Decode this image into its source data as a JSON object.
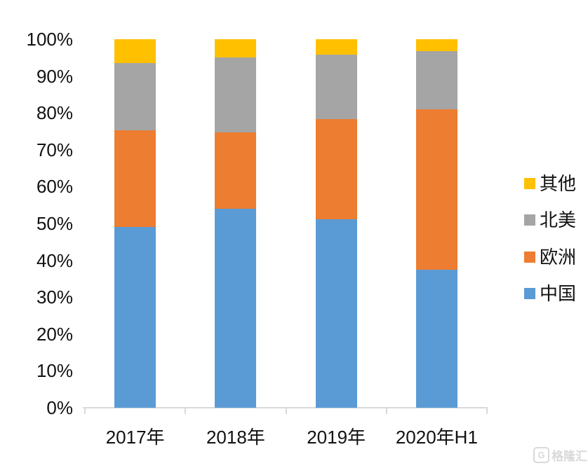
{
  "chart_data": {
    "type": "bar",
    "subtype": "stacked-100-percent",
    "title": "",
    "xlabel": "",
    "ylabel": "",
    "categories": [
      "2017年",
      "2018年",
      "2019年",
      "2020年H1"
    ],
    "series": [
      {
        "name": "中国",
        "color": "#5B9BD5",
        "values": [
          49.0,
          54.0,
          51.2,
          37.4
        ]
      },
      {
        "name": "欧洲",
        "color": "#ED7D31",
        "values": [
          26.2,
          20.8,
          27.2,
          43.6
        ]
      },
      {
        "name": "北美",
        "color": "#A5A5A5",
        "values": [
          18.3,
          20.2,
          17.5,
          15.7
        ]
      },
      {
        "name": "其他",
        "color": "#FFC000",
        "values": [
          6.5,
          5.0,
          4.1,
          3.3
        ]
      }
    ],
    "y_ticks": [
      "0%",
      "10%",
      "20%",
      "30%",
      "40%",
      "50%",
      "60%",
      "70%",
      "80%",
      "90%",
      "100%"
    ],
    "ylim": [
      0,
      100
    ],
    "grid": false,
    "legend_position": "right",
    "legend_order_top_to_bottom": [
      "其他",
      "北美",
      "欧洲",
      "中国"
    ],
    "axis_line_color": "#d9d9d9",
    "text_color": "#111111"
  },
  "watermark": {
    "logo_letter": "G",
    "text": "格隆汇"
  }
}
